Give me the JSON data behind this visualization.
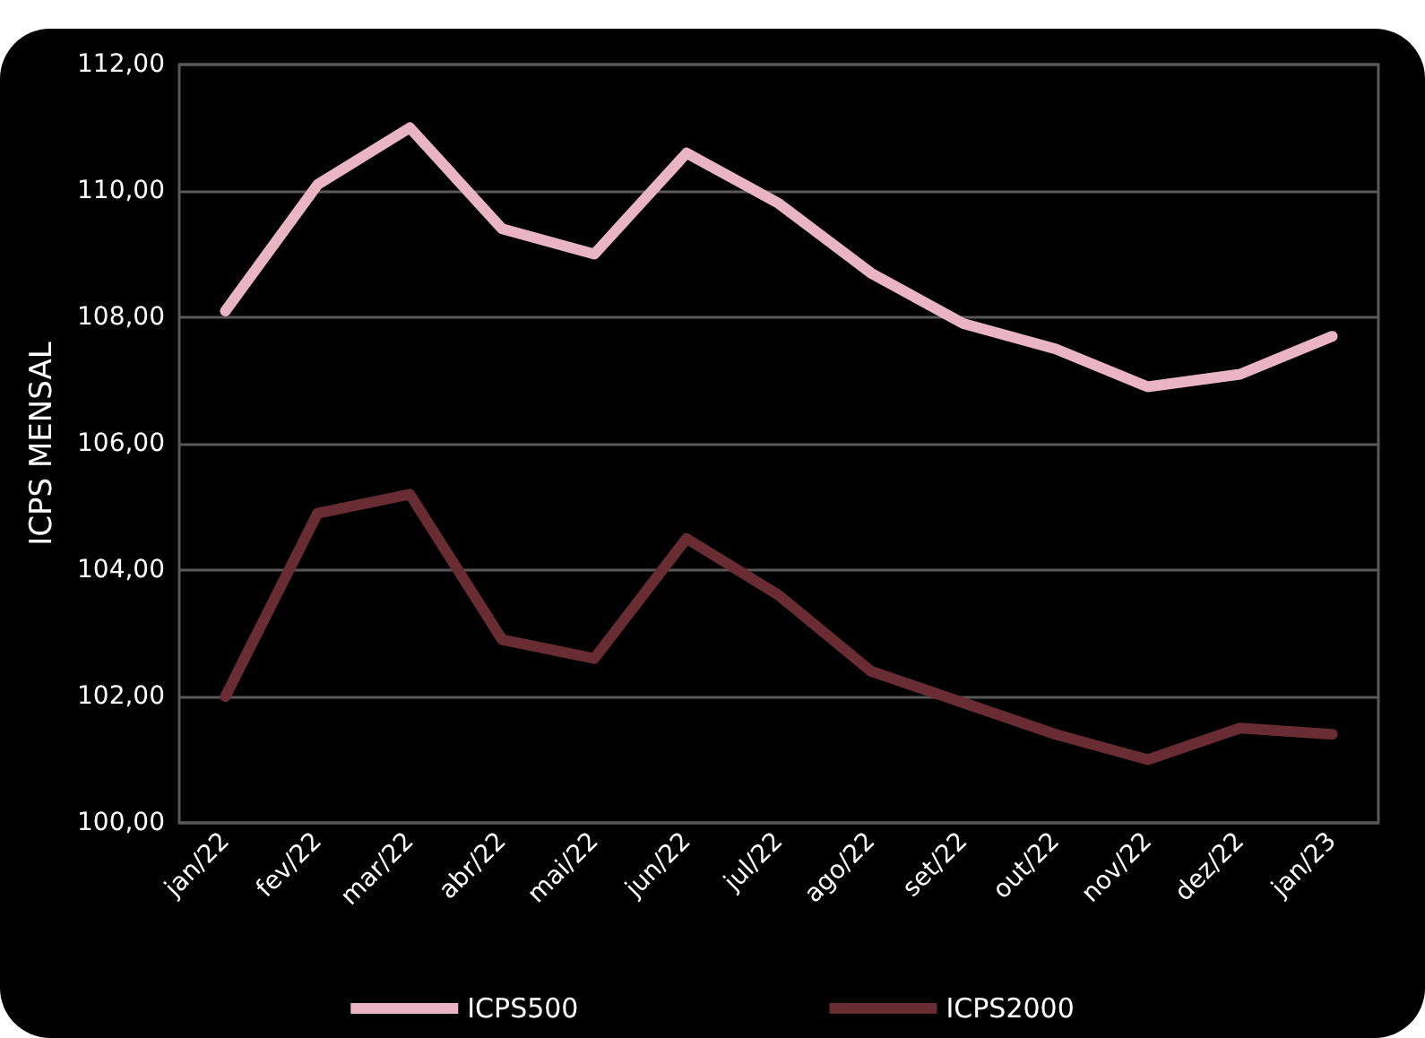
{
  "chart_data": {
    "type": "line",
    "ylabel": "ICPS MENSAL",
    "categories": [
      "jan/22",
      "fev/22",
      "mar/22",
      "abr/22",
      "mai/22",
      "jun/22",
      "jul/22",
      "ago/22",
      "set/22",
      "out/22",
      "nov/22",
      "dez/22",
      "jan/23"
    ],
    "series": [
      {
        "name": "ICPS500",
        "color": "#eab5c3",
        "values": [
          108.1,
          110.1,
          111.0,
          109.4,
          109.0,
          110.6,
          109.8,
          108.7,
          107.9,
          107.5,
          106.9,
          107.1,
          107.7
        ]
      },
      {
        "name": "ICPS2000",
        "color": "#6a2c33",
        "values": [
          102.0,
          104.9,
          105.2,
          102.9,
          102.6,
          104.5,
          103.6,
          102.4,
          101.9,
          101.4,
          101.0,
          101.5,
          101.4
        ]
      }
    ],
    "ylim": [
      100,
      112
    ],
    "yticks": [
      {
        "value": 100,
        "label": "100,00"
      },
      {
        "value": 102,
        "label": "102,00"
      },
      {
        "value": 104,
        "label": "104,00"
      },
      {
        "value": 106,
        "label": "106,00"
      },
      {
        "value": 108,
        "label": "108,00"
      },
      {
        "value": 110,
        "label": "110,00"
      },
      {
        "value": 112,
        "label": "112,00"
      }
    ],
    "grid": "y",
    "legend": "bottom",
    "marker": "none",
    "line_style": "solid"
  }
}
